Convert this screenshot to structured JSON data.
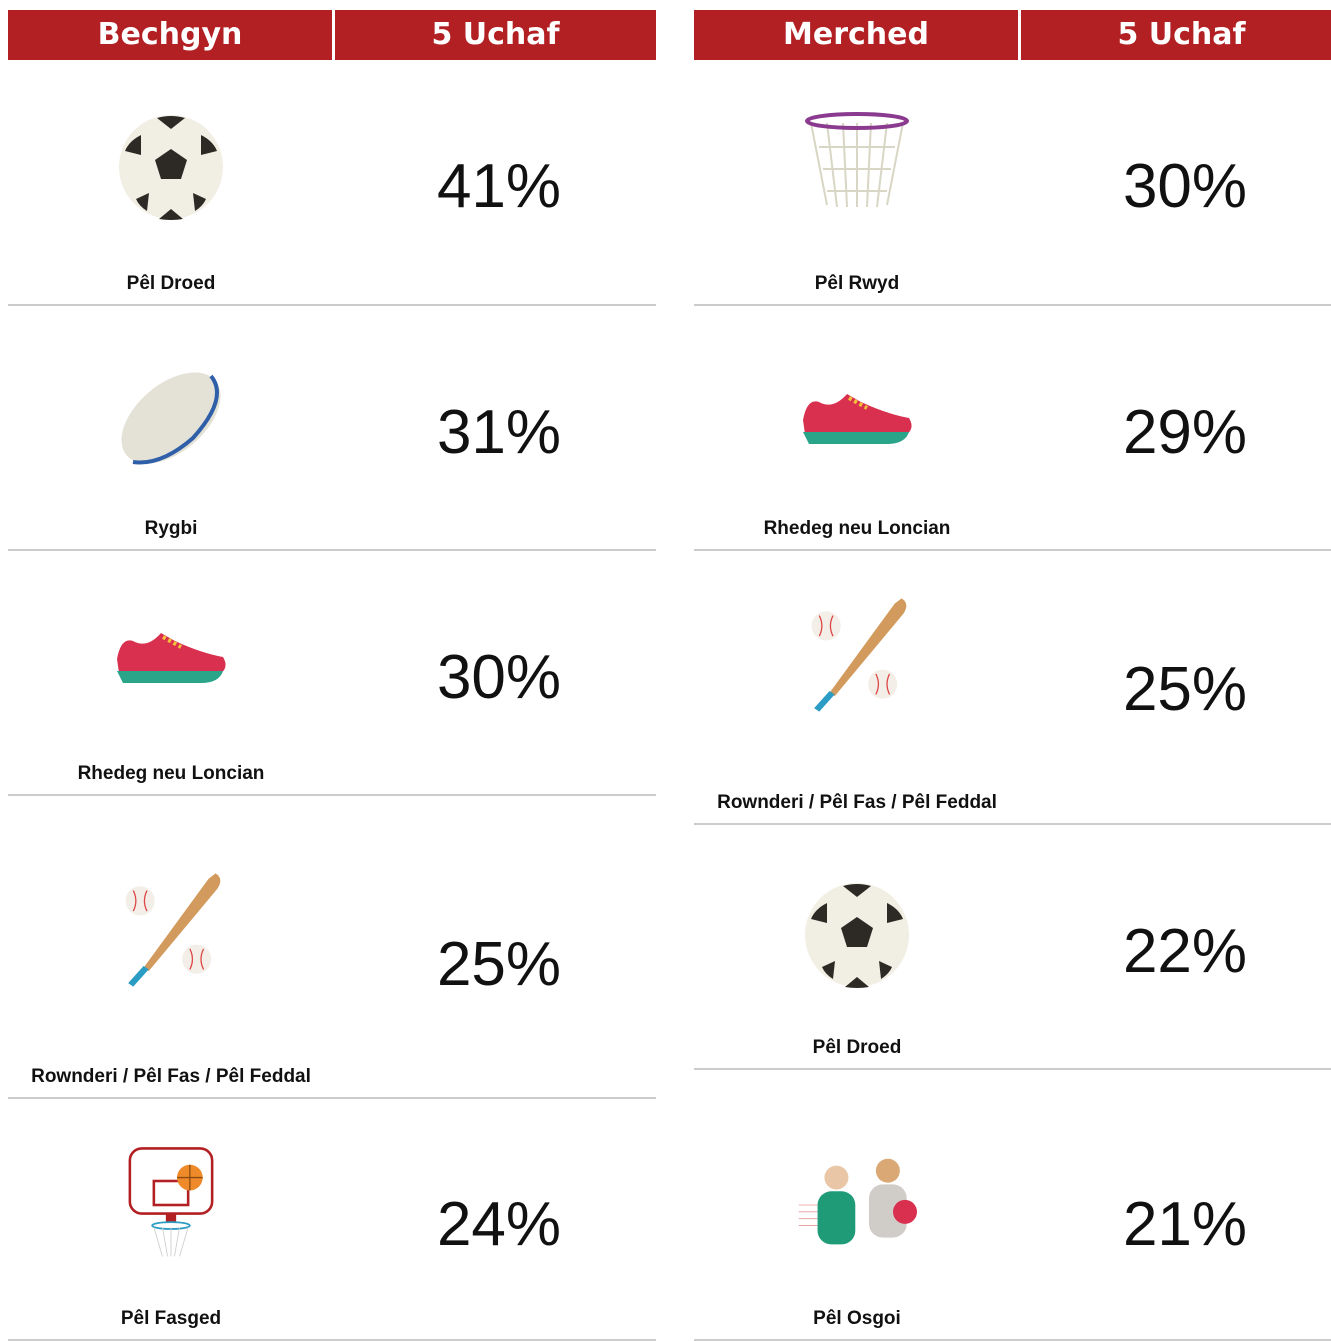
{
  "tables": [
    {
      "header": [
        "Bechgyn",
        "5 Uchaf"
      ],
      "rows": [
        {
          "sport": "Pêl Droed",
          "value": "41%"
        },
        {
          "sport": "Rygbi",
          "value": "31%"
        },
        {
          "sport": "Rhedeg neu Loncian",
          "value": "30%"
        },
        {
          "sport": "Rownderi / Pêl Fas / Pêl Feddal",
          "value": "25%"
        },
        {
          "sport": "Pêl Fasged",
          "value": "24%"
        }
      ]
    },
    {
      "header": [
        "Merched",
        "5 Uchaf"
      ],
      "rows": [
        {
          "sport": "Pêl Rwyd",
          "value": "30%"
        },
        {
          "sport": "Rhedeg neu Loncian",
          "value": "29%"
        },
        {
          "sport": "Rownderi / Pêl Fas / Pêl Feddal",
          "value": "25%"
        },
        {
          "sport": "Pêl Droed",
          "value": "22%"
        },
        {
          "sport": "Pêl Osgoi",
          "value": "21%"
        }
      ]
    }
  ]
}
